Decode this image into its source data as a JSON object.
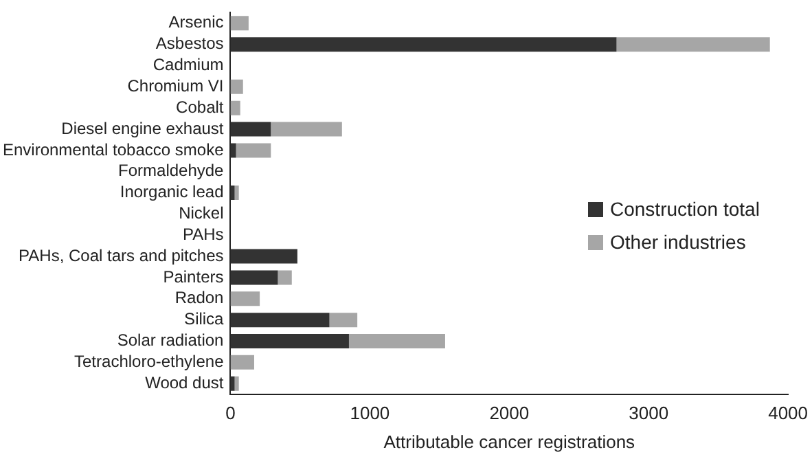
{
  "chart_data": {
    "type": "bar",
    "orientation": "horizontal",
    "stacked": true,
    "categories": [
      "Arsenic",
      "Asbestos",
      "Cadmium",
      "Chromium VI",
      "Cobalt",
      "Diesel engine exhaust",
      "Environmental tobacco smoke",
      "Formaldehyde",
      "Inorganic lead",
      "Nickel",
      "PAHs",
      "PAHs, Coal tars and pitches",
      "Painters",
      "Radon",
      "Silica",
      "Solar radiation",
      "Tetrachloro-ethylene",
      "Wood dust"
    ],
    "series": [
      {
        "name": "Construction total",
        "color": "#333333",
        "values": [
          0,
          2770,
          0,
          0,
          0,
          290,
          40,
          0,
          30,
          0,
          0,
          480,
          340,
          0,
          710,
          850,
          0,
          30
        ]
      },
      {
        "name": "Other industries",
        "color": "#a6a6a6",
        "values": [
          130,
          1100,
          0,
          90,
          70,
          510,
          250,
          null,
          30,
          0,
          0,
          0,
          100,
          210,
          200,
          690,
          170,
          30
        ]
      }
    ],
    "xlim": [
      0,
      4000
    ],
    "xticks": [
      0,
      1000,
      2000,
      3000,
      4000
    ],
    "xlabel": "Attributable cancer registrations",
    "grid": false,
    "legend": "right"
  }
}
